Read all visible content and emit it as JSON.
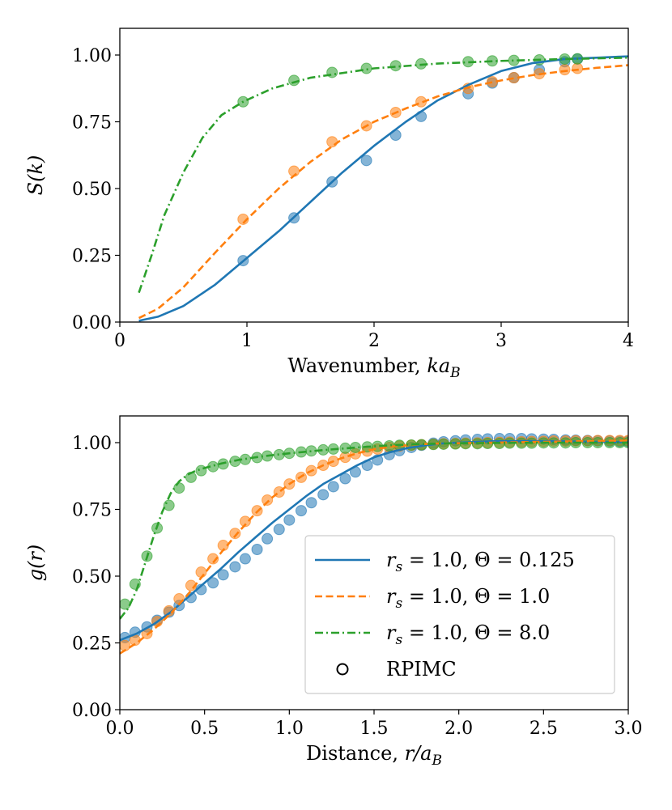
{
  "chart_data": [
    {
      "type": "line",
      "panel": "top",
      "xlabel": "Wavenumber, ka_B",
      "xlabel_parts": {
        "main": "Wavenumber, ",
        "var": "ka",
        "sub": "B"
      },
      "ylabel": "S(k)",
      "xlim": [
        0,
        4
      ],
      "ylim": [
        0,
        1.1
      ],
      "xticks": [
        0,
        1,
        2,
        3,
        4
      ],
      "xtick_labels": [
        "0",
        "1",
        "2",
        "3",
        "4"
      ],
      "yticks": [
        0,
        0.25,
        0.5,
        0.75,
        1.0
      ],
      "ytick_labels": [
        "0.00",
        "0.25",
        "0.50",
        "0.75",
        "1.00"
      ],
      "series": [
        {
          "name": "r_s = 1.0, Θ = 0.125",
          "color": "#1f77b4",
          "dash": "solid",
          "x": [
            0.15,
            0.3,
            0.5,
            0.75,
            1.0,
            1.25,
            1.5,
            1.75,
            2.0,
            2.25,
            2.5,
            2.75,
            3.0,
            3.25,
            3.5,
            3.75,
            4.0
          ],
          "y": [
            0.005,
            0.02,
            0.06,
            0.14,
            0.24,
            0.34,
            0.45,
            0.56,
            0.66,
            0.75,
            0.83,
            0.89,
            0.94,
            0.97,
            0.985,
            0.99,
            0.995
          ],
          "points_x": [
            0.97,
            1.37,
            1.67,
            1.94,
            2.17,
            2.37,
            2.74,
            2.93,
            3.1,
            3.3,
            3.5,
            3.6
          ],
          "points_y": [
            0.23,
            0.39,
            0.525,
            0.605,
            0.7,
            0.77,
            0.855,
            0.895,
            0.915,
            0.945,
            0.975,
            0.985
          ]
        },
        {
          "name": "r_s = 1.0, Θ = 1.0",
          "color": "#ff7f0e",
          "dash": "dashed",
          "x": [
            0.15,
            0.3,
            0.5,
            0.75,
            1.0,
            1.25,
            1.5,
            1.75,
            2.0,
            2.25,
            2.5,
            2.75,
            3.0,
            3.25,
            3.5,
            3.75,
            4.0
          ],
          "y": [
            0.015,
            0.05,
            0.13,
            0.26,
            0.385,
            0.5,
            0.6,
            0.685,
            0.75,
            0.8,
            0.845,
            0.88,
            0.905,
            0.925,
            0.94,
            0.952,
            0.962
          ],
          "points_x": [
            0.97,
            1.37,
            1.67,
            1.94,
            2.17,
            2.37,
            2.74,
            2.93,
            3.1,
            3.3,
            3.5,
            3.6
          ],
          "points_y": [
            0.385,
            0.565,
            0.675,
            0.735,
            0.785,
            0.825,
            0.875,
            0.9,
            0.915,
            0.93,
            0.945,
            0.95
          ]
        },
        {
          "name": "r_s = 1.0, Θ = 8.0",
          "color": "#2ca02c",
          "dash": "dashdot",
          "x": [
            0.15,
            0.25,
            0.35,
            0.5,
            0.65,
            0.8,
            0.97,
            1.2,
            1.5,
            2.0,
            2.5,
            3.0,
            3.5,
            4.0
          ],
          "y": [
            0.11,
            0.25,
            0.4,
            0.56,
            0.69,
            0.775,
            0.825,
            0.875,
            0.915,
            0.95,
            0.968,
            0.978,
            0.985,
            0.99
          ],
          "points_x": [
            0.97,
            1.37,
            1.67,
            1.94,
            2.17,
            2.37,
            2.74,
            2.93,
            3.1,
            3.3,
            3.5,
            3.6
          ],
          "points_y": [
            0.825,
            0.905,
            0.935,
            0.95,
            0.96,
            0.967,
            0.975,
            0.978,
            0.98,
            0.982,
            0.985,
            0.986
          ]
        }
      ]
    },
    {
      "type": "line",
      "panel": "bottom",
      "xlabel": "Distance, r/a_B",
      "xlabel_parts": {
        "main": "Distance, ",
        "var": "r/a",
        "sub": "B"
      },
      "ylabel": "g(r)",
      "xlim": [
        0,
        3
      ],
      "ylim": [
        0,
        1.1
      ],
      "xticks": [
        0,
        0.5,
        1,
        1.5,
        2,
        2.5,
        3
      ],
      "xtick_labels": [
        "0.0",
        "0.5",
        "1.0",
        "1.5",
        "2.0",
        "2.5",
        "3.0"
      ],
      "yticks": [
        0,
        0.25,
        0.5,
        0.75,
        1.0
      ],
      "ytick_labels": [
        "0.00",
        "0.25",
        "0.50",
        "0.75",
        "1.00"
      ],
      "legend_position": "lower-right",
      "series": [
        {
          "name": "r_s = 1.0, Θ = 0.125",
          "color": "#1f77b4",
          "dash": "solid",
          "x": [
            0,
            0.1,
            0.2,
            0.3,
            0.4,
            0.5,
            0.6,
            0.7,
            0.8,
            0.9,
            1.0,
            1.1,
            1.2,
            1.3,
            1.4,
            1.5,
            1.6,
            1.7,
            1.8,
            1.9,
            2.0,
            2.2,
            2.4,
            2.6,
            2.8,
            3.0
          ],
          "y": [
            0.26,
            0.285,
            0.32,
            0.365,
            0.42,
            0.475,
            0.53,
            0.59,
            0.645,
            0.7,
            0.75,
            0.8,
            0.845,
            0.88,
            0.915,
            0.945,
            0.965,
            0.98,
            0.99,
            0.997,
            1.0,
            1.005,
            1.006,
            1.005,
            1.003,
            1.002
          ]
        },
        {
          "name": "r_s = 1.0, Θ = 1.0",
          "color": "#ff7f0e",
          "dash": "dashed",
          "x": [
            0,
            0.1,
            0.2,
            0.3,
            0.4,
            0.5,
            0.6,
            0.7,
            0.8,
            0.9,
            1.0,
            1.1,
            1.2,
            1.3,
            1.4,
            1.5,
            1.6,
            1.7,
            1.8,
            1.9,
            2.0,
            2.2,
            2.4,
            2.6,
            2.8,
            3.0
          ],
          "y": [
            0.21,
            0.25,
            0.3,
            0.36,
            0.43,
            0.51,
            0.59,
            0.665,
            0.735,
            0.795,
            0.845,
            0.885,
            0.915,
            0.94,
            0.96,
            0.975,
            0.985,
            0.99,
            0.995,
            0.997,
            0.998,
            1.0,
            1.002,
            1.004,
            1.006,
            1.008
          ]
        },
        {
          "name": "r_s = 1.0, Θ = 8.0",
          "color": "#2ca02c",
          "dash": "dashdot",
          "x": [
            0,
            0.05,
            0.1,
            0.15,
            0.2,
            0.25,
            0.3,
            0.35,
            0.4,
            0.45,
            0.5,
            0.6,
            0.7,
            0.8,
            0.9,
            1.0,
            1.2,
            1.4,
            1.6,
            1.8,
            2.0,
            2.5,
            3.0
          ],
          "y": [
            0.34,
            0.38,
            0.45,
            0.55,
            0.65,
            0.74,
            0.81,
            0.855,
            0.88,
            0.895,
            0.905,
            0.922,
            0.935,
            0.945,
            0.953,
            0.96,
            0.972,
            0.982,
            0.99,
            0.995,
            0.998,
            1.0,
            1.0
          ]
        },
        {
          "name": "RPIMC",
          "color": "#000000",
          "marker": "circle-open",
          "groups": [
            {
              "color": "#1f77b4",
              "x": [
                0.03,
                0.09,
                0.16,
                0.22,
                0.29,
                0.35,
                0.42,
                0.48,
                0.55,
                0.61,
                0.68,
                0.74,
                0.81,
                0.87,
                0.94,
                1.0,
                1.07,
                1.13,
                1.2,
                1.26,
                1.33,
                1.39,
                1.46,
                1.52,
                1.59,
                1.65,
                1.72,
                1.78,
                1.85,
                1.91,
                1.98,
                2.04,
                2.11,
                2.17,
                2.24,
                2.3,
                2.37,
                2.43,
                2.5,
                2.56,
                2.63,
                2.69,
                2.76,
                2.82,
                2.89,
                2.95,
                3.0
              ],
              "y": [
                0.27,
                0.29,
                0.31,
                0.335,
                0.365,
                0.39,
                0.42,
                0.45,
                0.475,
                0.505,
                0.535,
                0.565,
                0.6,
                0.64,
                0.675,
                0.71,
                0.745,
                0.775,
                0.805,
                0.835,
                0.865,
                0.89,
                0.915,
                0.935,
                0.955,
                0.97,
                0.982,
                0.99,
                0.998,
                1.003,
                1.007,
                1.01,
                1.012,
                1.014,
                1.015,
                1.015,
                1.015,
                1.014,
                1.013,
                1.012,
                1.01,
                1.009,
                1.008,
                1.007,
                1.006,
                1.005,
                1.005
              ]
            },
            {
              "color": "#ff7f0e",
              "x": [
                0.03,
                0.09,
                0.16,
                0.22,
                0.29,
                0.35,
                0.42,
                0.48,
                0.55,
                0.61,
                0.68,
                0.74,
                0.81,
                0.87,
                0.94,
                1.0,
                1.07,
                1.13,
                1.2,
                1.26,
                1.33,
                1.39,
                1.46,
                1.52,
                1.59,
                1.65,
                1.72,
                1.78,
                1.85,
                1.91,
                1.98,
                2.04,
                2.11,
                2.17,
                2.24,
                2.3,
                2.37,
                2.43,
                2.5,
                2.56,
                2.63,
                2.69,
                2.76,
                2.82,
                2.89,
                2.95,
                3.0
              ],
              "y": [
                0.24,
                0.26,
                0.285,
                0.33,
                0.37,
                0.415,
                0.465,
                0.515,
                0.565,
                0.615,
                0.66,
                0.705,
                0.745,
                0.785,
                0.815,
                0.845,
                0.87,
                0.895,
                0.915,
                0.93,
                0.945,
                0.958,
                0.968,
                0.976,
                0.982,
                0.987,
                0.99,
                0.992,
                0.994,
                0.996,
                0.997,
                0.998,
                0.999,
                1.0,
                1.001,
                1.002,
                1.003,
                1.004,
                1.005,
                1.006,
                1.006,
                1.007,
                1.007,
                1.008,
                1.008,
                1.008,
                1.008
              ]
            },
            {
              "color": "#2ca02c",
              "x": [
                0.03,
                0.09,
                0.16,
                0.22,
                0.29,
                0.35,
                0.42,
                0.48,
                0.55,
                0.61,
                0.68,
                0.74,
                0.81,
                0.87,
                0.94,
                1.0,
                1.07,
                1.13,
                1.2,
                1.26,
                1.33,
                1.39,
                1.46,
                1.52,
                1.59,
                1.65,
                1.72,
                1.78,
                1.85,
                1.91,
                1.98,
                2.04,
                2.11,
                2.17,
                2.24,
                2.3,
                2.37,
                2.43,
                2.5,
                2.56,
                2.63,
                2.69,
                2.76,
                2.82,
                2.89,
                2.95,
                3.0
              ],
              "y": [
                0.395,
                0.47,
                0.575,
                0.68,
                0.765,
                0.83,
                0.87,
                0.895,
                0.91,
                0.92,
                0.93,
                0.937,
                0.944,
                0.95,
                0.955,
                0.96,
                0.965,
                0.969,
                0.973,
                0.976,
                0.979,
                0.982,
                0.984,
                0.986,
                0.988,
                0.99,
                0.991,
                0.992,
                0.993,
                0.994,
                0.995,
                0.996,
                0.996,
                0.997,
                0.997,
                0.998,
                0.998,
                0.998,
                0.999,
                0.999,
                0.999,
                1.0,
                1.0,
                1.0,
                1.0,
                1.0,
                1.0
              ]
            }
          ]
        }
      ]
    }
  ],
  "legend": {
    "items": [
      {
        "prefix": "r",
        "sub": "s",
        "text": " = 1.0, Θ = 0.125",
        "color": "#1f77b4",
        "dash": "solid"
      },
      {
        "prefix": "r",
        "sub": "s",
        "text": " = 1.0, Θ = 1.0",
        "color": "#ff7f0e",
        "dash": "dashed"
      },
      {
        "prefix": "r",
        "sub": "s",
        "text": " = 1.0, Θ = 8.0",
        "color": "#2ca02c",
        "dash": "dashdot"
      },
      {
        "prefix": "",
        "sub": "",
        "text": "RPIMC",
        "color": "#000000",
        "marker": "circle-open"
      }
    ]
  }
}
